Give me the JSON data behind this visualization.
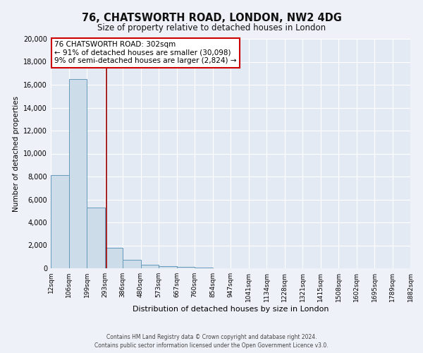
{
  "title": "76, CHATSWORTH ROAD, LONDON, NW2 4DG",
  "subtitle": "Size of property relative to detached houses in London",
  "xlabel": "Distribution of detached houses by size in London",
  "ylabel": "Number of detached properties",
  "bin_labels": [
    "12sqm",
    "106sqm",
    "199sqm",
    "293sqm",
    "386sqm",
    "480sqm",
    "573sqm",
    "667sqm",
    "760sqm",
    "854sqm",
    "947sqm",
    "1041sqm",
    "1134sqm",
    "1228sqm",
    "1321sqm",
    "1415sqm",
    "1508sqm",
    "1602sqm",
    "1695sqm",
    "1789sqm",
    "1882sqm"
  ],
  "bar_heights": [
    8100,
    16500,
    5300,
    1800,
    750,
    300,
    175,
    100,
    60,
    30,
    0,
    0,
    0,
    0,
    0,
    0,
    0,
    0,
    0,
    0
  ],
  "bar_color": "#ccdce8",
  "bar_edge_color": "#6699bb",
  "ylim": [
    0,
    20000
  ],
  "yticks": [
    0,
    2000,
    4000,
    6000,
    8000,
    10000,
    12000,
    14000,
    16000,
    18000,
    20000
  ],
  "annotation_line1": "76 CHATSWORTH ROAD: 302sqm",
  "annotation_line2": "← 91% of detached houses are smaller (30,098)",
  "annotation_line3": "9% of semi-detached houses are larger (2,824) →",
  "annotation_box_color": "#ffffff",
  "annotation_box_edge_color": "#cc0000",
  "footer_line1": "Contains HM Land Registry data © Crown copyright and database right 2024.",
  "footer_line2": "Contains public sector information licensed under the Open Government Licence v3.0.",
  "background_color": "#eef2f8",
  "plot_bg_color": "#e4eaf4",
  "grid_color": "#ffffff",
  "num_bins": 20,
  "red_line_x": 3.097
}
